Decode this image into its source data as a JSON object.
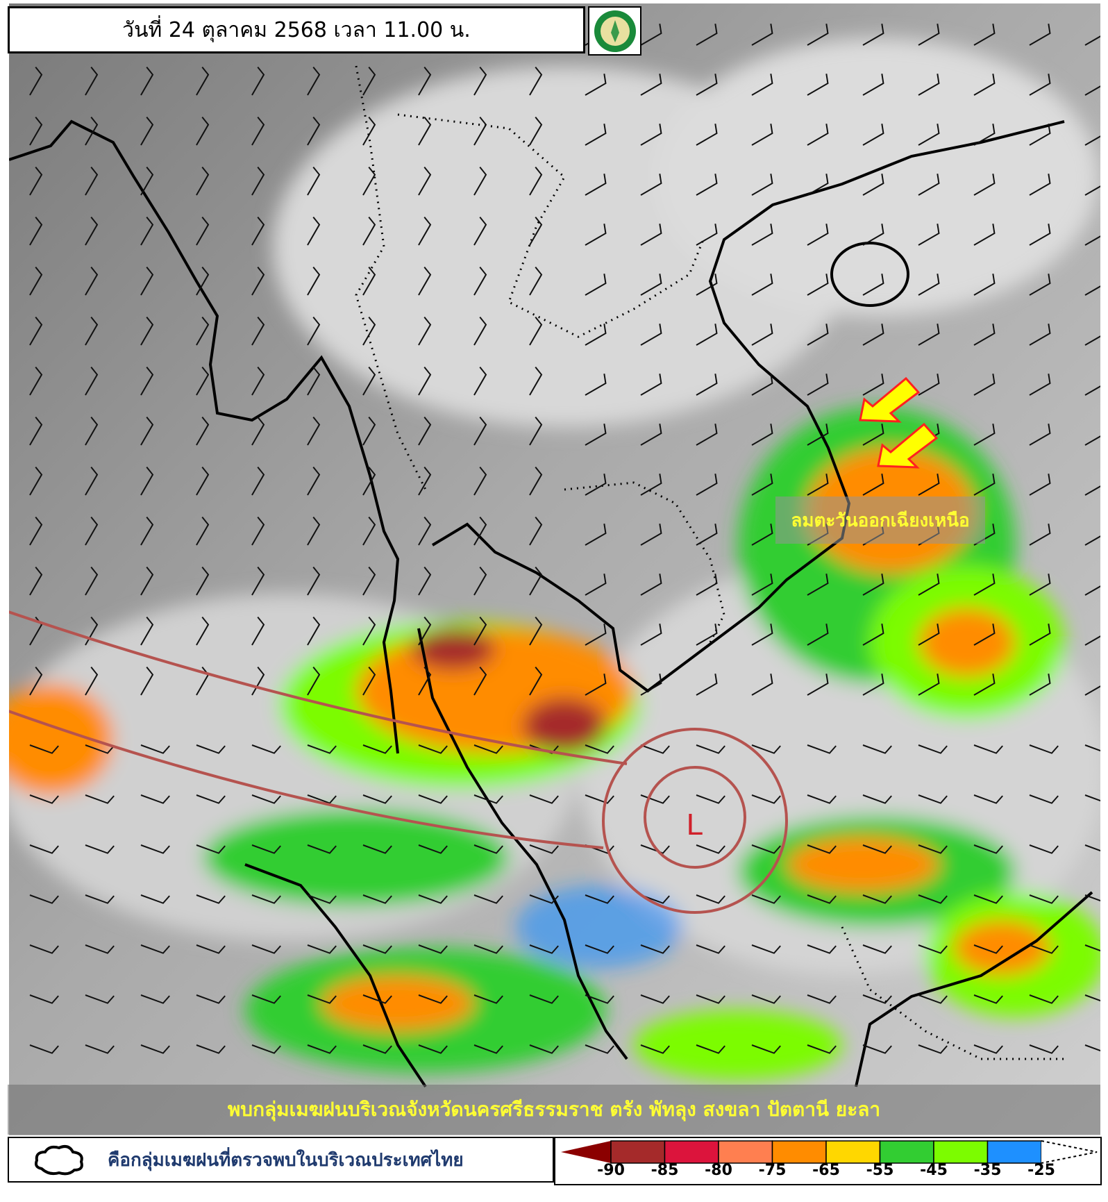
{
  "header": {
    "title": "วันที่ 24 ตุลาคม 2568 เวลา 11.00 น.",
    "logo": "กรมอุตุนิยมวิทยา THAI METEOROLOGICAL DEPARTMENT"
  },
  "map": {
    "wind_label": "ลมตะวันออกเฉียงเหนือ",
    "low_pressure": "L",
    "arrow_color": "#ffff00"
  },
  "banner": {
    "text": "พบกลุ่มเมฆฝนบริเวณจังหวัดนครศรีธรรมราช ตรัง พัทลุง สงขลา ปัตตานี ยะลา"
  },
  "legend": {
    "cloud_icon": "cloud-outline-icon",
    "description": "คือกลุ่มเมฆฝนที่ตรวจพบในบริเวณประเทศไทย",
    "scale_colors": [
      "#8b0000",
      "#a52a2a",
      "#dc143c",
      "#ff7f50",
      "#ff8c00",
      "#ffd700",
      "#32cd32",
      "#7cfc00",
      "#1e90ff",
      "#ffffff"
    ],
    "ticks": [
      "-90",
      "-85",
      "-80",
      "-75",
      "-65",
      "-55",
      "-45",
      "-35",
      "-25"
    ]
  }
}
